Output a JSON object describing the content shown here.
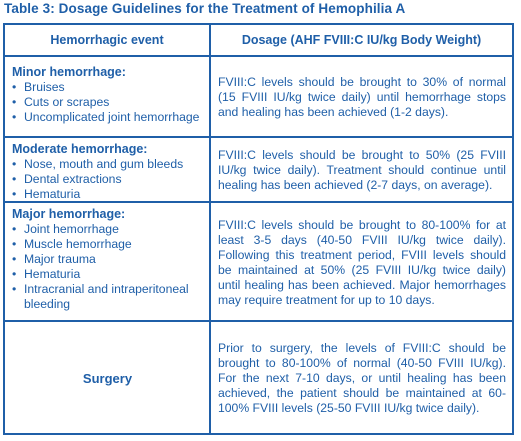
{
  "title": "Table 3: Dosage Guidelines for the Treatment of Hemophilia A",
  "headers": {
    "event": "Hemorrhagic event",
    "dosage": "Dosage (AHF FVIII:C IU/kg Body Weight)"
  },
  "rows": [
    {
      "event_title": "Minor hemorrhage:",
      "items": [
        "Bruises",
        "Cuts or scrapes",
        "Uncomplicated joint hemorrhage"
      ],
      "dosage": "FVIII:C levels should be brought to 30% of normal (15 FVIII IU/kg twice daily) until hemorrhage stops and healing has been achieved (1-2 days)."
    },
    {
      "event_title": "Moderate hemorrhage:",
      "items": [
        "Nose, mouth and gum bleeds",
        "Dental extractions",
        "Hematuria"
      ],
      "dosage": "FVIII:C levels should be brought to 50% (25 FVIII IU/kg twice daily). Treatment should continue until healing has been achieved (2-7 days, on average)."
    },
    {
      "event_title": "Major hemorrhage:",
      "items": [
        "Joint hemorrhage",
        "Muscle hemorrhage",
        "Major trauma",
        "Hematuria",
        "Intracranial and intraperitoneal bleeding"
      ],
      "dosage": "FVIII:C levels should be brought to 80-100% for at least 3-5 days (40-50 FVIII IU/kg twice daily). Following this treatment period, FVIII levels should be maintained at 50% (25 FVIII IU/kg twice daily) until healing has been achieved. Major hemorrhages may require treatment for up to 10 days."
    },
    {
      "event_title": "Surgery",
      "items": [],
      "dosage": "Prior to surgery, the levels of FVIII:C should be brought to 80-100% of normal (40-50 FVIII IU/kg). For the next 7-10 days, or until healing has been achieved, the patient should be maintained at 60-100% FVIII levels (25-50 FVIII IU/kg twice daily)."
    }
  ],
  "colors": {
    "text": "#1f5fa8",
    "border": "#1f5fa8",
    "background": "#ffffff"
  }
}
